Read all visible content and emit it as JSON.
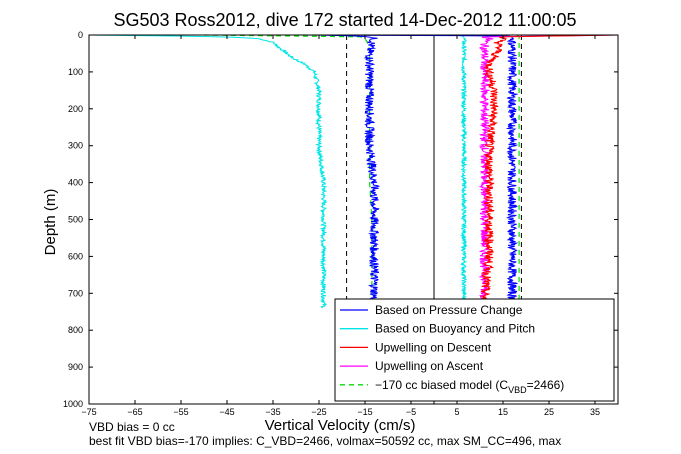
{
  "chart_data": {
    "type": "line",
    "title": "SG503 Ross2012, dive 172 started 14-Dec-2012 11:00:05",
    "xlabel": "Vertical Velocity (cm/s)",
    "ylabel": "Depth (m)",
    "xlim": [
      -75,
      40
    ],
    "ylim": [
      0,
      1000
    ],
    "y_reversed": true,
    "grid": false,
    "legend_position": "bottom-right",
    "x_ticks": [
      -75,
      -65,
      -55,
      -45,
      -35,
      -25,
      -15,
      -5,
      5,
      15,
      25,
      35
    ],
    "x_tick_labels": [
      "−75",
      "−65",
      "−55",
      "−45",
      "−35",
      "−25",
      "−15",
      "−5",
      "5",
      "15",
      "25",
      "35"
    ],
    "y_ticks": [
      0,
      100,
      200,
      300,
      400,
      500,
      600,
      700,
      800,
      900,
      1000
    ],
    "y_tick_labels": [
      "0",
      "100",
      "200",
      "300",
      "400",
      "500",
      "600",
      "700",
      "800",
      "900",
      "1000"
    ],
    "reference_lines": [
      {
        "x": -19,
        "style": "dashed",
        "color": "#000000"
      },
      {
        "x": 0,
        "style": "solid",
        "color": "#000000"
      },
      {
        "x": 19,
        "style": "dashed",
        "color": "#000000"
      }
    ],
    "series": [
      {
        "name": "Based on Pressure Change",
        "color": "#0000ff",
        "style": "solid",
        "noise": 1.0,
        "depth": [
          0,
          2,
          5,
          10,
          20,
          40,
          60,
          80,
          100,
          150,
          200,
          300,
          400,
          500,
          600,
          700,
          740
        ],
        "descent": [
          -25,
          -18,
          -14,
          -13,
          -13.5,
          -14,
          -14,
          -14,
          -14,
          -14,
          -14,
          -14,
          -13,
          -13,
          -13,
          -13,
          -13
        ],
        "ascent": [
          -30,
          16,
          17,
          17,
          17,
          17,
          17,
          17,
          17,
          17,
          17,
          17,
          17,
          17,
          17,
          17,
          17
        ]
      },
      {
        "name": "Based on Buoyancy and Pitch",
        "color": "#00e5e5",
        "style": "solid",
        "noise": 0.5,
        "depth": [
          0,
          2,
          5,
          10,
          20,
          30,
          40,
          60,
          80,
          100,
          150,
          200,
          300,
          400,
          500,
          600,
          700,
          740
        ],
        "descent": [
          -75,
          -60,
          -45,
          -38,
          -35,
          -34,
          -33,
          -31,
          -28,
          -26,
          -25,
          -25,
          -25,
          -24,
          -24,
          -24,
          -24,
          -24
        ],
        "ascent": [
          5,
          6,
          6.5,
          6.5,
          6.5,
          6.5,
          6.5,
          6.5,
          6.5,
          6.5,
          6.5,
          6.5,
          6.5,
          6.5,
          6.5,
          6.5,
          6.5,
          6.5
        ]
      },
      {
        "name": "Upwelling on Descent",
        "color": "#ff0000",
        "style": "solid",
        "noise": 1.0,
        "depth": [
          0,
          5,
          10,
          20,
          40,
          60,
          80,
          100,
          150,
          200,
          300,
          400,
          500,
          600,
          700,
          740
        ],
        "values": [
          40,
          14,
          15,
          14,
          14,
          13,
          12,
          12,
          13,
          13,
          12,
          12,
          12,
          12,
          11,
          11
        ]
      },
      {
        "name": "Upwelling on Ascent",
        "color": "#ff00ff",
        "style": "solid",
        "noise": 1.0,
        "depth": [
          0,
          5,
          10,
          20,
          40,
          60,
          80,
          100,
          150,
          200,
          300,
          400,
          500,
          600,
          700,
          740
        ],
        "values": [
          40,
          10,
          12,
          11,
          11,
          11,
          11,
          11,
          11,
          11,
          11,
          11,
          11,
          11,
          11,
          11
        ]
      },
      {
        "name": "−170 cc biased model (C_VBD=2466)",
        "color": "#00dd00",
        "style": "dashed",
        "noise": 0,
        "depth": [
          0,
          2,
          5,
          10,
          20,
          40,
          60,
          80,
          100,
          200,
          300,
          400,
          500,
          600,
          700,
          740
        ],
        "descent": [
          -50,
          -18,
          -16,
          -15,
          -14.5,
          -14,
          -14,
          -14,
          -14,
          -14,
          -14,
          -14,
          -13.5,
          -13.5,
          -13.5,
          -13.5
        ],
        "ascent": [
          18,
          18.5,
          18.5,
          18.5,
          18.5,
          18.5,
          18.5,
          18.5,
          18.5,
          18.5,
          18.5,
          18.5,
          18.5,
          18.5,
          18.5,
          18.5
        ]
      }
    ],
    "legend": {
      "entries": [
        {
          "label": "Based on Pressure Change",
          "color": "#0000ff",
          "style": "solid"
        },
        {
          "label": "Based on Buoyancy and Pitch",
          "color": "#00e5e5",
          "style": "solid"
        },
        {
          "label": "Upwelling on Descent",
          "color": "#ff0000",
          "style": "solid"
        },
        {
          "label": "Upwelling on Ascent",
          "color": "#ff00ff",
          "style": "solid"
        },
        {
          "label_main": "−170 cc biased model (C",
          "label_sub": "VBD",
          "label_tail": "=2466)",
          "color": "#00dd00",
          "style": "dashed"
        }
      ]
    },
    "footer": {
      "line1": "VBD bias = 0 cc",
      "line2": "best fit VBD bias=-170 implies: C_VBD=2466, volmax=50592 cc, max SM_CC=496, max"
    }
  }
}
